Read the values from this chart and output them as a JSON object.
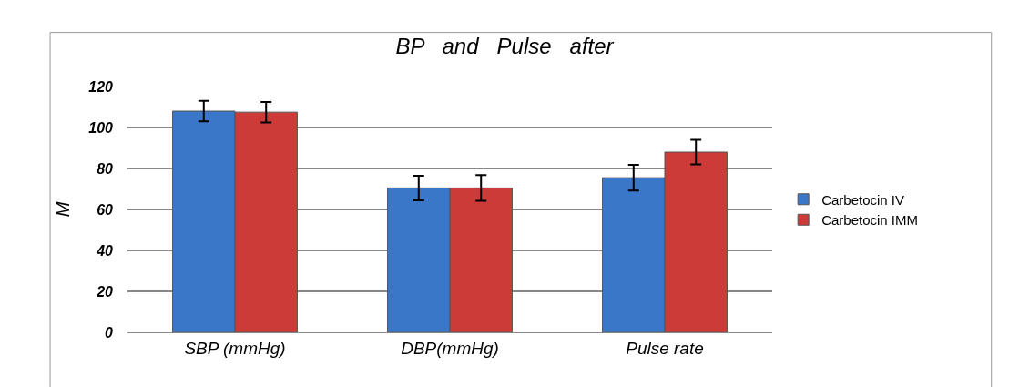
{
  "chart_data": {
    "type": "bar",
    "title": "BP   and   Pulse   after",
    "ylabel": "M",
    "categories": [
      "SBP (mmHg)",
      "DBP(mmHg)",
      "Pulse rate"
    ],
    "series": [
      {
        "name": "Carbetocin IV",
        "color": "#3a77c8",
        "values": [
          108,
          70.5,
          75.5
        ],
        "errors": [
          5,
          6,
          6.3
        ]
      },
      {
        "name": "Carbetocin IMM",
        "color": "#cc3b38",
        "values": [
          107.5,
          70.5,
          88
        ],
        "errors": [
          5,
          6.3,
          6
        ]
      }
    ],
    "ylim": [
      0,
      120
    ],
    "yticks": [
      0,
      20,
      40,
      60,
      80,
      100,
      120
    ],
    "grid": "y",
    "legend": "right"
  }
}
